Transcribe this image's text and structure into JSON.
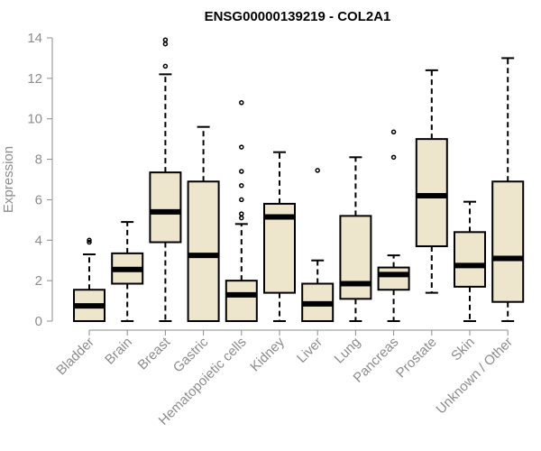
{
  "chart_data": {
    "type": "box",
    "title": "ENSG00000139219 - COL2A1",
    "xlabel": "",
    "ylabel": "Expression",
    "ylim": [
      0,
      14
    ],
    "yticks": [
      0,
      2,
      4,
      6,
      8,
      10,
      12,
      14
    ],
    "colors": {
      "box_fill": "#ede5cc",
      "box_stroke": "#000000",
      "axis": "#8c8c8c"
    },
    "categories": [
      "Bladder",
      "Brain",
      "Breast",
      "Gastric",
      "Hematopoietic cells",
      "Kidney",
      "Liver",
      "Lung",
      "Pancreas",
      "Prostate",
      "Skin",
      "Unknown / Other"
    ],
    "boxes": [
      {
        "q1": 0.0,
        "median": 0.75,
        "q3": 1.55,
        "whisker_low": 0.0,
        "whisker_high": 3.3,
        "outliers": [
          3.9,
          4.0
        ]
      },
      {
        "q1": 1.85,
        "median": 2.55,
        "q3": 3.35,
        "whisker_low": 0.0,
        "whisker_high": 4.9,
        "outliers": []
      },
      {
        "q1": 3.9,
        "median": 5.4,
        "q3": 7.35,
        "whisker_low": 0.0,
        "whisker_high": 12.2,
        "outliers": [
          12.6,
          13.7,
          13.9
        ]
      },
      {
        "q1": 0.0,
        "median": 3.25,
        "q3": 6.9,
        "whisker_low": 0.0,
        "whisker_high": 9.6,
        "outliers": []
      },
      {
        "q1": 0.0,
        "median": 1.3,
        "q3": 2.0,
        "whisker_low": 0.0,
        "whisker_high": 4.8,
        "outliers": [
          5.1,
          5.3,
          6.0,
          6.7,
          7.4,
          8.6,
          10.8
        ]
      },
      {
        "q1": 1.4,
        "median": 5.15,
        "q3": 5.8,
        "whisker_low": 0.0,
        "whisker_high": 8.35,
        "outliers": []
      },
      {
        "q1": 0.0,
        "median": 0.85,
        "q3": 1.85,
        "whisker_low": 0.0,
        "whisker_high": 3.0,
        "outliers": [
          7.45
        ]
      },
      {
        "q1": 1.1,
        "median": 1.85,
        "q3": 5.2,
        "whisker_low": 0.0,
        "whisker_high": 8.1,
        "outliers": []
      },
      {
        "q1": 1.55,
        "median": 2.3,
        "q3": 2.65,
        "whisker_low": 0.0,
        "whisker_high": 3.25,
        "outliers": [
          8.1,
          9.35
        ]
      },
      {
        "q1": 3.7,
        "median": 6.2,
        "q3": 9.0,
        "whisker_low": 1.4,
        "whisker_high": 12.4,
        "outliers": []
      },
      {
        "q1": 1.7,
        "median": 2.75,
        "q3": 4.4,
        "whisker_low": 0.0,
        "whisker_high": 5.9,
        "outliers": []
      },
      {
        "q1": 0.95,
        "median": 3.1,
        "q3": 6.9,
        "whisker_low": 0.0,
        "whisker_high": 13.0,
        "outliers": []
      }
    ]
  }
}
